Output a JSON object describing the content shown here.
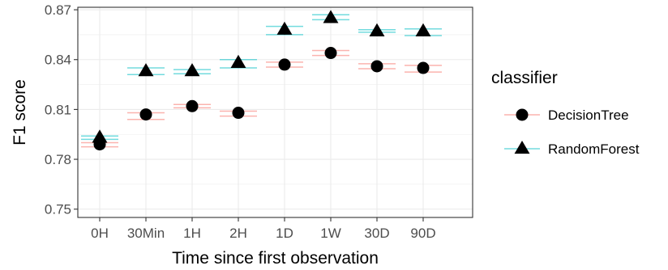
{
  "chart_data": {
    "type": "scatter",
    "title": "",
    "xlabel": "Time since first observation",
    "ylabel": "F1 score",
    "categories": [
      "0H",
      "30Min",
      "1H",
      "2H",
      "1D",
      "1W",
      "30D",
      "90D"
    ],
    "yticks": [
      "0.75",
      "0.78",
      "0.81",
      "0.84",
      "0.87"
    ],
    "ylim": [
      0.745,
      0.8715
    ],
    "grid": true,
    "legend": {
      "title": "classifier",
      "position": "right"
    },
    "series": [
      {
        "name": "DecisionTree",
        "marker": "circle",
        "color": "#f8766d",
        "values": [
          0.789,
          0.807,
          0.812,
          0.808,
          0.837,
          0.844,
          0.836,
          0.835
        ],
        "lower": [
          0.7875,
          0.804,
          0.811,
          0.806,
          0.8355,
          0.8425,
          0.8345,
          0.8325
        ],
        "upper": [
          0.79,
          0.808,
          0.813,
          0.809,
          0.8385,
          0.8455,
          0.8375,
          0.8365
        ]
      },
      {
        "name": "RandomForest",
        "marker": "triangle",
        "color": "#00bfc4",
        "values": [
          0.793,
          0.833,
          0.833,
          0.838,
          0.858,
          0.865,
          0.857,
          0.857
        ],
        "lower": [
          0.792,
          0.831,
          0.8315,
          0.835,
          0.855,
          0.864,
          0.8565,
          0.8545
        ],
        "upper": [
          0.794,
          0.835,
          0.834,
          0.84,
          0.86,
          0.867,
          0.858,
          0.8585
        ]
      }
    ]
  }
}
